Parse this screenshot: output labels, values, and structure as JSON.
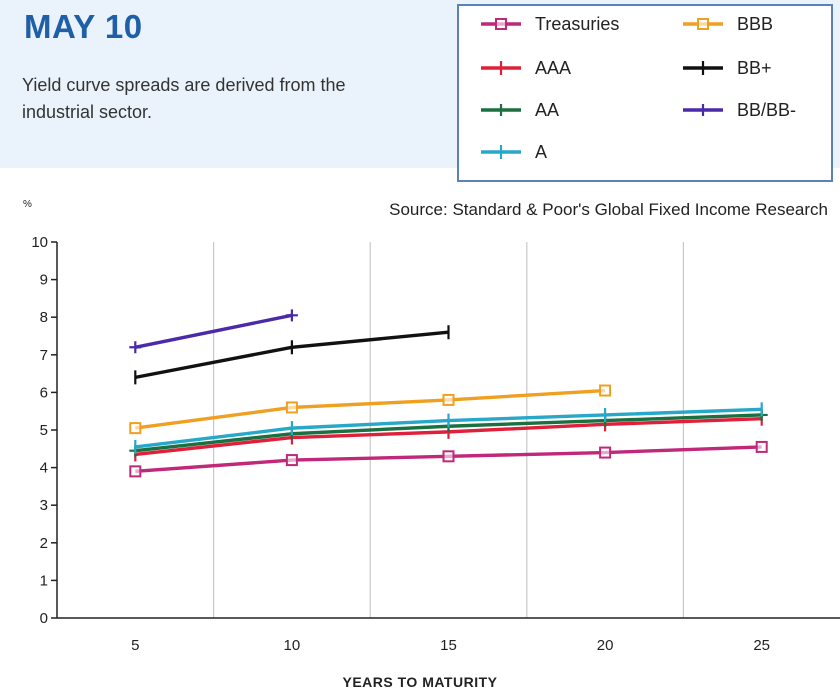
{
  "header": {
    "title": "MAY 10",
    "subtitle": "Yield curve spreads are derived from the industrial sector."
  },
  "source": "Source: Standard & Poor's Global Fixed Income Research",
  "chart_data": {
    "type": "line",
    "title": "",
    "ylabel": "%",
    "xlabel": "YEARS TO MATURITY",
    "x_ticks": [
      5,
      10,
      15,
      20,
      25
    ],
    "y_ticks": [
      0,
      1,
      2,
      3,
      4,
      5,
      6,
      7,
      8,
      9,
      10
    ],
    "xlim": [
      2.5,
      27.5
    ],
    "ylim": [
      0,
      10
    ],
    "grid": true,
    "legend_placement": "top-right",
    "series": [
      {
        "name": "Treasuries",
        "color": "#c0287a",
        "marker": "square",
        "x": [
          5,
          10,
          15,
          20,
          25
        ],
        "y": [
          3.9,
          4.2,
          4.3,
          4.4,
          4.55
        ]
      },
      {
        "name": "AAA",
        "color": "#e0203a",
        "marker": "tick",
        "x": [
          5,
          10,
          15,
          20,
          25
        ],
        "y": [
          4.35,
          4.8,
          4.95,
          5.15,
          5.3
        ]
      },
      {
        "name": "AA",
        "color": "#1a7040",
        "marker": "cross",
        "x": [
          5,
          10,
          15,
          20,
          25
        ],
        "y": [
          4.45,
          4.9,
          5.1,
          5.25,
          5.4
        ]
      },
      {
        "name": "A",
        "color": "#28a8c8",
        "marker": "tick",
        "x": [
          5,
          10,
          15,
          20,
          25
        ],
        "y": [
          4.55,
          5.05,
          5.25,
          5.4,
          5.55
        ]
      },
      {
        "name": "BBB",
        "color": "#f0a020",
        "marker": "square",
        "x": [
          5,
          10,
          15,
          20
        ],
        "y": [
          5.05,
          5.6,
          5.8,
          6.05
        ]
      },
      {
        "name": "BB+",
        "color": "#111111",
        "marker": "tick",
        "x": [
          5,
          10,
          15
        ],
        "y": [
          6.4,
          7.2,
          7.6
        ]
      },
      {
        "name": "BB/BB-",
        "color": "#4a2aa8",
        "marker": "cross",
        "x": [
          5,
          10
        ],
        "y": [
          7.2,
          8.05
        ]
      }
    ]
  }
}
